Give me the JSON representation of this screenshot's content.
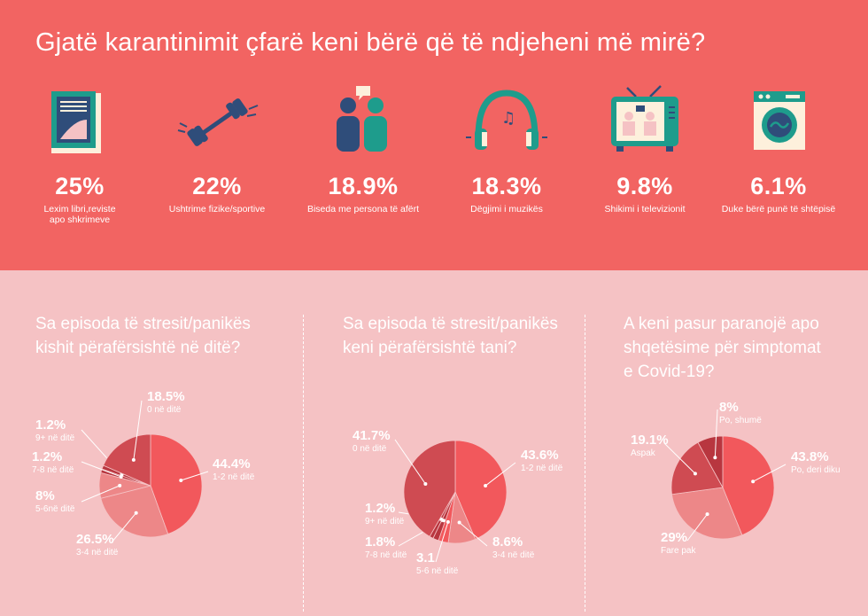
{
  "header": {
    "title": "Gjatë karantinimit çfarë keni bërë që të ndjeheni më mirë?"
  },
  "stats": [
    {
      "icon": "book-icon",
      "value": "25%",
      "label": "Lexim libri,reviste\napo shkrimeve"
    },
    {
      "icon": "dumbbell-icon",
      "value": "22%",
      "label": "Ushtrime fizike/sportive"
    },
    {
      "icon": "conversation-icon",
      "value": "18.9%",
      "label": "Biseda me persona të afërt"
    },
    {
      "icon": "headphones-icon",
      "value": "18.3%",
      "label": "Dëgjimi i muzikës"
    },
    {
      "icon": "television-icon",
      "value": "9.8%",
      "label": "Shikimi i televizionit"
    },
    {
      "icon": "washing-machine-icon",
      "value": "6.1%",
      "label": "Duke bërë punë të shtëpisë"
    }
  ],
  "questions": [
    "Sa episoda të stresit/panikës\nkishit përafërsishtë në ditë?",
    "Sa episoda të stresit/panikës\nkeni përafërsishtë tani?",
    "A keni pasur paranojë apo\nshqetësime për simptomat\ne Covid-19?"
  ],
  "colors": {
    "header_bg": "#f26462",
    "body_bg": "#f5c2c4",
    "slice_red": "#f2585c",
    "slice_dark": "#cf4b52",
    "slice_pink": "#ed8788",
    "slice_darker": "#b8363f",
    "icon_teal": "#1e9c8c",
    "icon_navy": "#2f4d7a",
    "icon_pink": "#f5c2c4",
    "icon_cream": "#fdf0dc"
  },
  "chart_data": [
    {
      "type": "pie",
      "title": "Sa episoda të stresit/panikës kishit përafërsishtë në ditë?",
      "slices": [
        {
          "pct": "44.4%",
          "label": "1-2 në ditë",
          "value": 44.4
        },
        {
          "pct": "26.5%",
          "label": "3-4 në ditë",
          "value": 26.5
        },
        {
          "pct": "8%",
          "label": "5-6në ditë",
          "value": 8
        },
        {
          "pct": "1.2%",
          "label": "7-8 në ditë",
          "value": 1.2
        },
        {
          "pct": "1.2%",
          "label": "9+ në ditë",
          "value": 1.2
        },
        {
          "pct": "18.5%",
          "label": "0 në ditë",
          "value": 18.5
        }
      ]
    },
    {
      "type": "pie",
      "title": "Sa episoda të stresit/panikës keni përafërsishtë tani?",
      "slices": [
        {
          "pct": "43.6%",
          "label": "1-2 në ditë",
          "value": 43.6
        },
        {
          "pct": "8.6%",
          "label": "3-4 në ditë",
          "value": 8.6
        },
        {
          "pct": "3.1",
          "label": "5-6 në ditë",
          "value": 3.1
        },
        {
          "pct": "1.8%",
          "label": "7-8 në ditë",
          "value": 1.8
        },
        {
          "pct": "1.2%",
          "label": "9+ në ditë",
          "value": 1.2
        },
        {
          "pct": "41.7%",
          "label": "0 në ditë",
          "value": 41.7
        }
      ]
    },
    {
      "type": "pie",
      "title": "A keni pasur paranojë apo shqetësime për simptomat e Covid-19?",
      "slices": [
        {
          "pct": "43.8%",
          "label": "Po, deri diku",
          "value": 43.8
        },
        {
          "pct": "29%",
          "label": "Fare pak",
          "value": 29
        },
        {
          "pct": "19.1%",
          "label": "Aspak",
          "value": 19.1
        },
        {
          "pct": "8%",
          "label": "Po, shumë",
          "value": 8
        }
      ]
    }
  ]
}
